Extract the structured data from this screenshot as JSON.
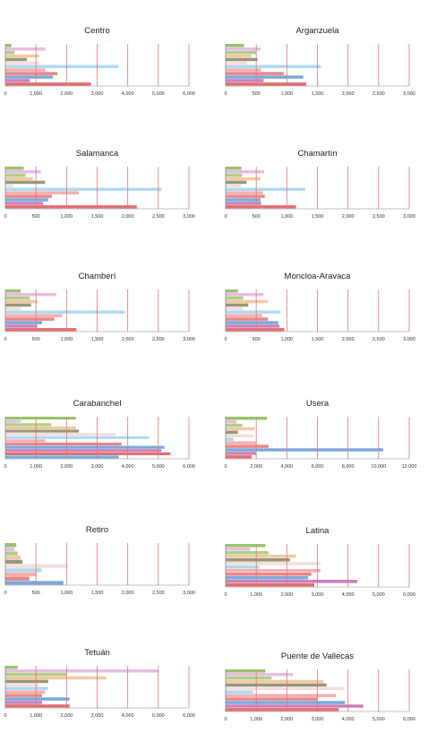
{
  "chart_data": [
    {
      "type": "bar",
      "title": "Centro",
      "xlim": [
        0,
        6000
      ],
      "ticks": [
        0,
        1000,
        2000,
        3000,
        4000,
        5000,
        6000
      ],
      "tick_labels": [
        "0",
        "1,000",
        "2,000",
        "3,000",
        "4,000",
        "5,000",
        "6,000"
      ],
      "values": [
        200,
        1300,
        300,
        1100,
        700,
        1100,
        3700,
        1300,
        1700,
        1550,
        800,
        2800
      ]
    },
    {
      "type": "bar",
      "title": "Arganzuela",
      "xlim": [
        0,
        3000
      ],
      "ticks": [
        0,
        500,
        1000,
        1500,
        2000,
        2500,
        3000
      ],
      "tick_labels": [
        "0",
        "500",
        "1,000",
        "1,500",
        "2,000",
        "2,500",
        "3,000"
      ],
      "values": [
        300,
        570,
        500,
        420,
        520,
        350,
        1560,
        580,
        950,
        1270,
        620,
        1320
      ]
    },
    {
      "type": "bar",
      "title": "Salamanca",
      "xlim": [
        0,
        3000
      ],
      "ticks": [
        0,
        500,
        1000,
        1500,
        2000,
        2500,
        3000
      ],
      "tick_labels": [
        "0",
        "500",
        "1,000",
        "1,500",
        "2,000",
        "2,500",
        "3,000"
      ],
      "values": [
        300,
        580,
        330,
        450,
        650,
        120,
        2550,
        1200,
        760,
        700,
        620,
        2150
      ]
    },
    {
      "type": "bar",
      "title": "Chamartín",
      "xlim": [
        0,
        3000
      ],
      "ticks": [
        0,
        500,
        1000,
        1500,
        2000,
        2500,
        3000
      ],
      "tick_labels": [
        "0",
        "500",
        "1,000",
        "1,500",
        "2,000",
        "2,500",
        "3,000"
      ],
      "values": [
        260,
        630,
        270,
        570,
        340,
        250,
        1300,
        610,
        640,
        570,
        580,
        1150
      ]
    },
    {
      "type": "bar",
      "title": "Chamberí",
      "xlim": [
        0,
        3000
      ],
      "ticks": [
        0,
        500,
        1000,
        1500,
        2000,
        2500,
        3000
      ],
      "tick_labels": [
        "0",
        "500",
        "1,000",
        "1,500",
        "2,000",
        "2,500",
        "3,000"
      ],
      "values": [
        250,
        830,
        400,
        530,
        420,
        250,
        1950,
        930,
        800,
        600,
        520,
        1160
      ]
    },
    {
      "type": "bar",
      "title": "Moncloa-Aravaca",
      "xlim": [
        0,
        3000
      ],
      "ticks": [
        0,
        500,
        1000,
        1500,
        2000,
        2500,
        3000
      ],
      "tick_labels": [
        "0",
        "500",
        "1,000",
        "1,500",
        "2,000",
        "2,500",
        "3,000"
      ],
      "values": [
        200,
        620,
        290,
        690,
        370,
        280,
        900,
        600,
        690,
        860,
        880,
        960
      ]
    },
    {
      "type": "bar",
      "title": "Carabanchel",
      "xlim": [
        0,
        6000
      ],
      "ticks": [
        0,
        1000,
        2000,
        3000,
        4000,
        5000,
        6000
      ],
      "tick_labels": [
        "0",
        "1,000",
        "2,000",
        "3,000",
        "4,000",
        "5,000",
        "6,000"
      ],
      "values": [
        2300,
        500,
        1500,
        2300,
        2400,
        3600,
        4700,
        1300,
        3800,
        5200,
        5100,
        5400,
        3700
      ]
    },
    {
      "type": "bar",
      "title": "Usera",
      "xlim": [
        0,
        12000
      ],
      "ticks": [
        0,
        2000,
        4000,
        6000,
        8000,
        10000,
        12000
      ],
      "tick_labels": [
        "0",
        "2,000",
        "4,000",
        "6,000",
        "8,000",
        "10,000",
        "12,000"
      ],
      "values": [
        2700,
        700,
        1100,
        1900,
        800,
        1800,
        500,
        2000,
        2800,
        10300,
        2000,
        1700
      ]
    },
    {
      "type": "bar",
      "title": "Retiro",
      "xlim": [
        0,
        3000
      ],
      "ticks": [
        0,
        500,
        1000,
        1500,
        2000,
        2500,
        3000
      ],
      "tick_labels": [
        "0",
        "500",
        "1,000",
        "1,500",
        "2,000",
        "2,500",
        "3,000"
      ],
      "values": [
        180,
        150,
        200,
        250,
        280,
        1030,
        590,
        510,
        390,
        950
      ]
    },
    {
      "type": "bar",
      "title": "Latina",
      "xlim": [
        0,
        6000
      ],
      "ticks": [
        0,
        1000,
        2000,
        3000,
        4000,
        5000,
        6000
      ],
      "tick_labels": [
        "0",
        "1,000",
        "2,000",
        "3,000",
        "4,000",
        "5,000",
        "6,000"
      ],
      "values": [
        1300,
        800,
        1400,
        2300,
        2100,
        3100,
        1100,
        3100,
        2800,
        2700,
        4300,
        2900
      ]
    },
    {
      "type": "bar",
      "title": "Tetuán",
      "xlim": [
        0,
        6000
      ],
      "ticks": [
        0,
        1000,
        2000,
        3000,
        4000,
        5000,
        6000
      ],
      "tick_labels": [
        "0",
        "1,000",
        "2,000",
        "3,000",
        "4,000",
        "5,000",
        "6,000"
      ],
      "values": [
        400,
        5000,
        2000,
        3300,
        1400,
        1100,
        1400,
        1300,
        1200,
        2100,
        1200,
        2100
      ]
    },
    {
      "type": "bar",
      "title": "Puente de Vallecas",
      "xlim": [
        0,
        6000
      ],
      "ticks": [
        0,
        1000,
        2000,
        3000,
        4000,
        5000,
        6000
      ],
      "tick_labels": [
        "0",
        "1,000",
        "2,000",
        "3,000",
        "4,000",
        "5,000",
        "6,000"
      ],
      "values": [
        1300,
        2200,
        1500,
        3200,
        3300,
        3900,
        900,
        3600,
        3000,
        3900,
        4500,
        3700
      ]
    }
  ],
  "colors": {
    "grid": "#e57373",
    "axis": "#888888",
    "bar_palette": [
      "#8fbd5a",
      "#e4b6e1",
      "#a6cb7a",
      "#eec49a",
      "#8c8c6a",
      "#f2dcdc",
      "#a9d6ec",
      "#f4a6a6",
      "#e67a7a",
      "#6ea0d8",
      "#c773b4",
      "#e06060",
      "#5fa8dc"
    ]
  }
}
